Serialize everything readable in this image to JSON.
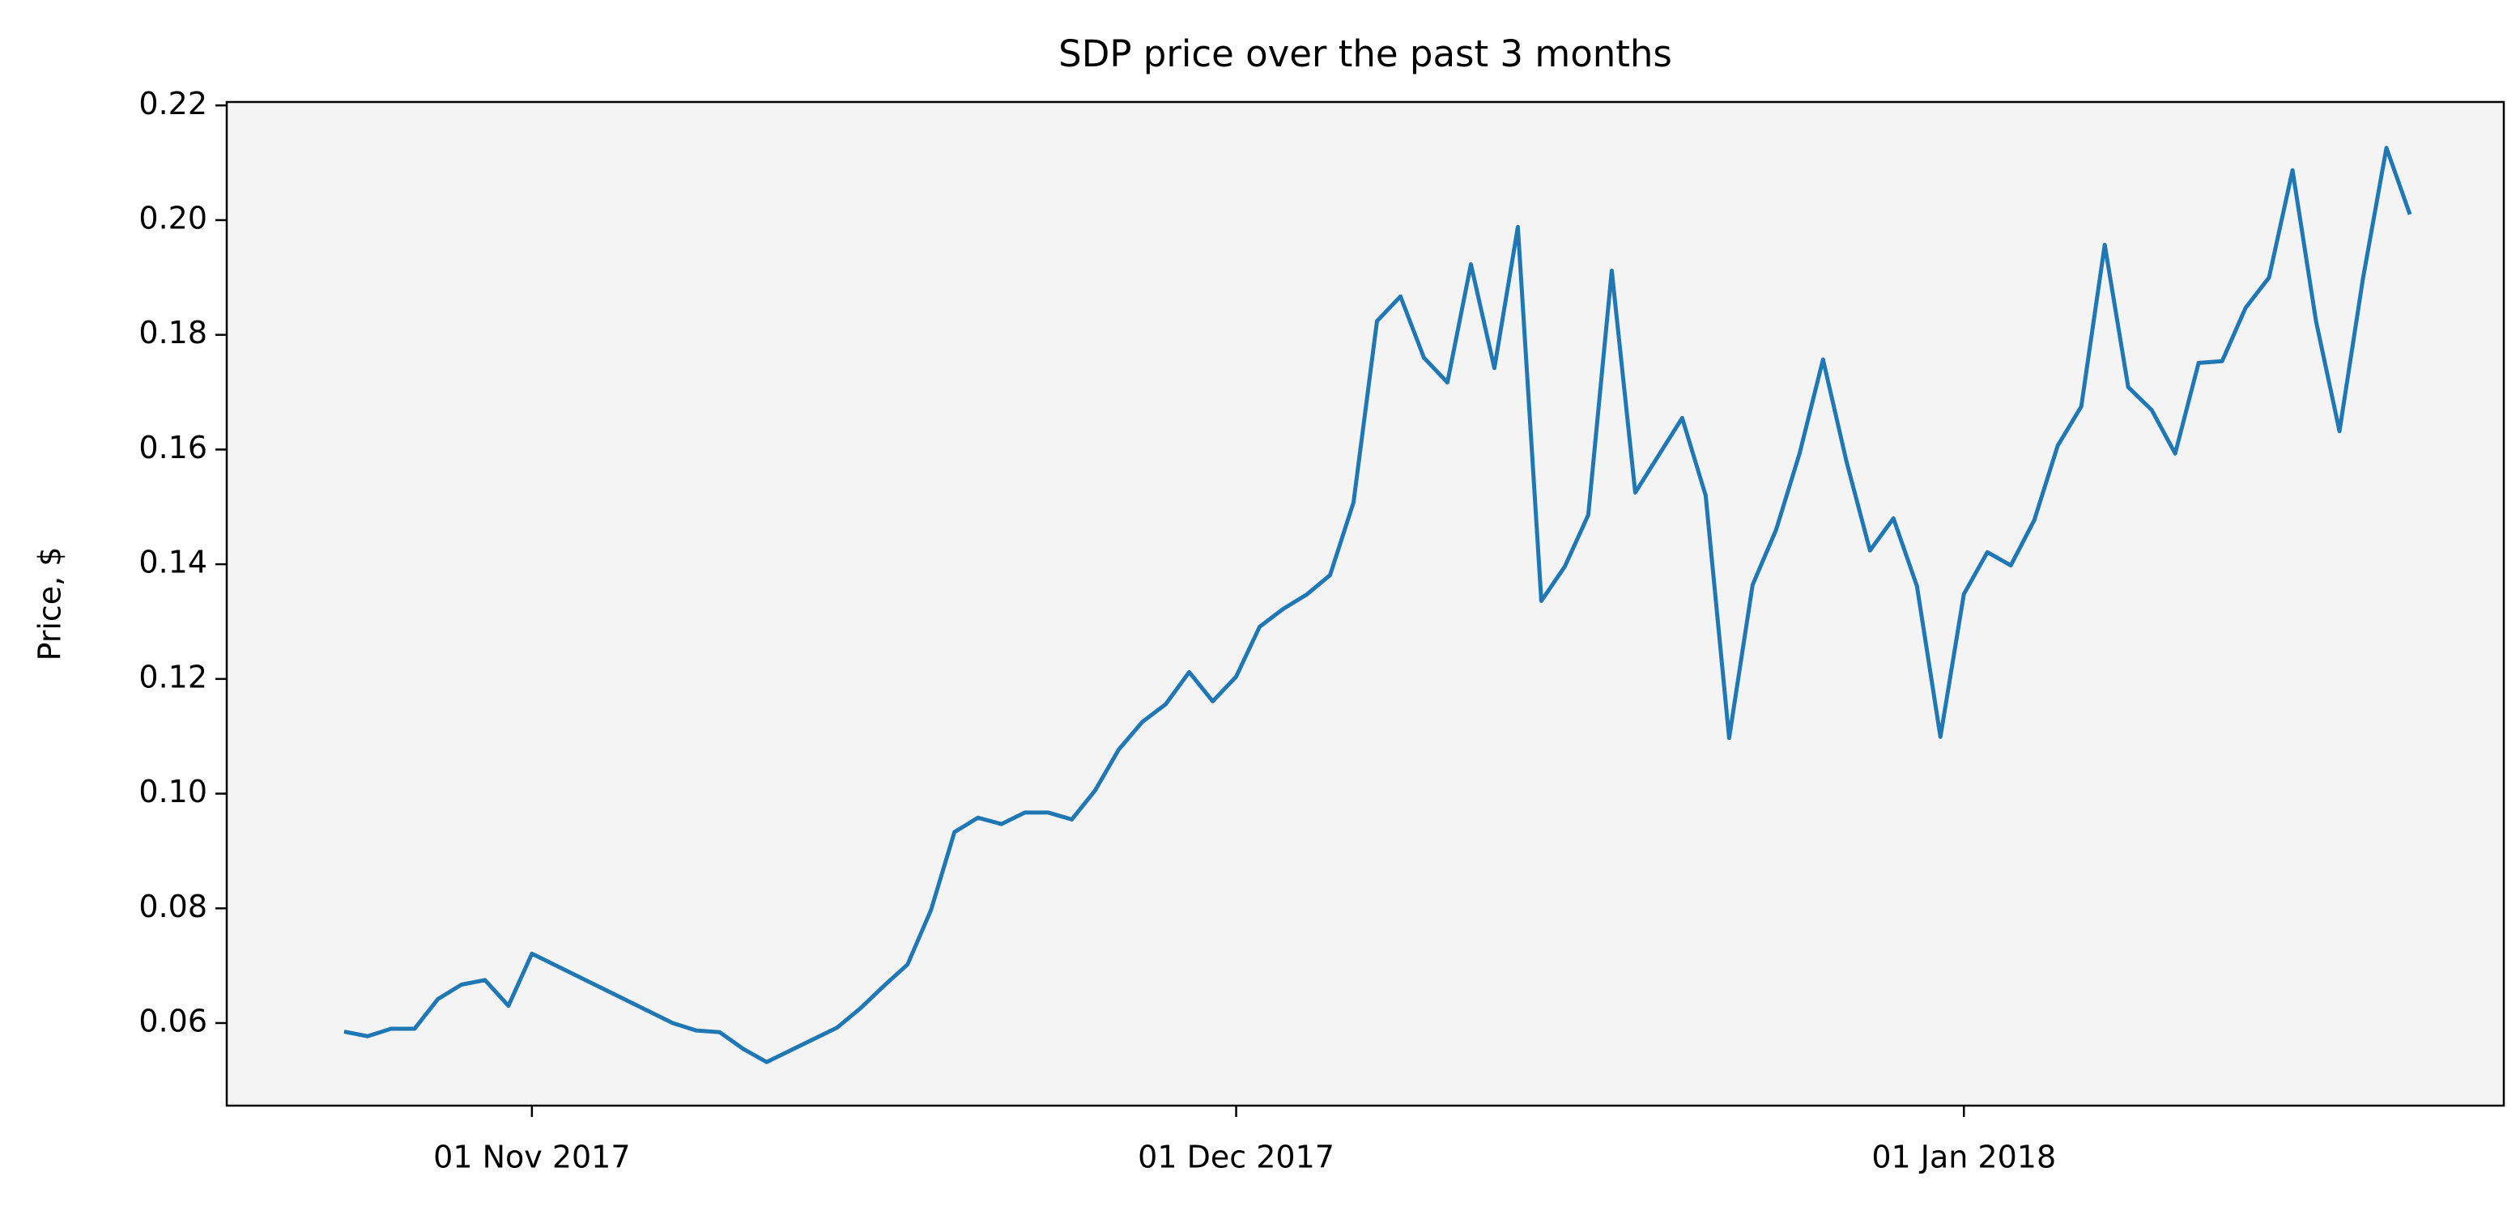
{
  "chart_data": {
    "type": "line",
    "title": "SDP price over the past 3 months",
    "y_label": "Price, $",
    "x": [
      "2017-10-24",
      "2017-10-25",
      "2017-10-26",
      "2017-10-27",
      "2017-10-28",
      "2017-10-29",
      "2017-10-30",
      "2017-10-31",
      "2017-11-01",
      "2017-11-07",
      "2017-11-08",
      "2017-11-09",
      "2017-11-10",
      "2017-11-11",
      "2017-11-14",
      "2017-11-15",
      "2017-11-16",
      "2017-11-17",
      "2017-11-18",
      "2017-11-19",
      "2017-11-20",
      "2017-11-21",
      "2017-11-22",
      "2017-11-23",
      "2017-11-24",
      "2017-11-25",
      "2017-11-26",
      "2017-11-27",
      "2017-11-28",
      "2017-11-29",
      "2017-11-30",
      "2017-12-01",
      "2017-12-02",
      "2017-12-03",
      "2017-12-04",
      "2017-12-05",
      "2017-12-06",
      "2017-12-07",
      "2017-12-08",
      "2017-12-09",
      "2017-12-10",
      "2017-12-11",
      "2017-12-12",
      "2017-12-13",
      "2017-12-14",
      "2017-12-15",
      "2017-12-16",
      "2017-12-17",
      "2017-12-18",
      "2017-12-19",
      "2017-12-20",
      "2017-12-21",
      "2017-12-22",
      "2017-12-23",
      "2017-12-24",
      "2017-12-25",
      "2017-12-26",
      "2017-12-27",
      "2017-12-28",
      "2017-12-29",
      "2017-12-30",
      "2017-12-31",
      "2018-01-01",
      "2018-01-02",
      "2018-01-03",
      "2018-01-04",
      "2018-01-05",
      "2018-01-06",
      "2018-01-07",
      "2018-01-08",
      "2018-01-09",
      "2018-01-10",
      "2018-01-11",
      "2018-01-12",
      "2018-01-13",
      "2018-01-14",
      "2018-01-15",
      "2018-01-16",
      "2018-01-17",
      "2018-01-18",
      "2018-01-19",
      "2018-01-20"
    ],
    "values": [
      0.0585,
      0.0577,
      0.059,
      0.059,
      0.0642,
      0.0667,
      0.0675,
      0.063,
      0.0721,
      0.06,
      0.0587,
      0.0584,
      0.0555,
      0.0532,
      0.0592,
      0.0626,
      0.0665,
      0.0702,
      0.0797,
      0.0933,
      0.0958,
      0.0947,
      0.0967,
      0.0967,
      0.0955,
      0.1006,
      0.1077,
      0.1125,
      0.1156,
      0.1212,
      0.1161,
      0.1204,
      0.1291,
      0.1322,
      0.1347,
      0.1381,
      0.1508,
      0.1824,
      0.1867,
      0.176,
      0.1717,
      0.1923,
      0.1742,
      0.1988,
      0.1336,
      0.1396,
      0.1486,
      0.1912,
      0.1525,
      0.159,
      0.1655,
      0.152,
      0.1097,
      0.1364,
      0.146,
      0.1593,
      0.1757,
      0.1579,
      0.1424,
      0.148,
      0.1362,
      0.1099,
      0.1348,
      0.1421,
      0.1398,
      0.1477,
      0.1607,
      0.1675,
      0.1957,
      0.1709,
      0.1669,
      0.1593,
      0.1751,
      0.1754,
      0.1847,
      0.19,
      0.2087,
      0.1824,
      0.1632,
      0.1898,
      0.2126,
      0.201
    ],
    "color": "#1f77b4",
    "xlim": [
      "2017-10-19",
      "2018-01-24"
    ],
    "xticks": [
      {
        "value": "2017-11-01",
        "label": "01 Nov 2017"
      },
      {
        "value": "2017-12-01",
        "label": "01 Dec 2017"
      },
      {
        "value": "2018-01-01",
        "label": "01 Jan 2018"
      }
    ],
    "ylim": [
      0.0456,
      0.2206
    ],
    "yticks": [
      0.06,
      0.08,
      {
        "value": 0.1,
        "label": "0.10"
      },
      0.12,
      0.14,
      0.16,
      0.18,
      {
        "value": 0.2,
        "label": "0.20"
      },
      0.22
    ],
    "background": "#f4f4f4",
    "grid": false
  }
}
